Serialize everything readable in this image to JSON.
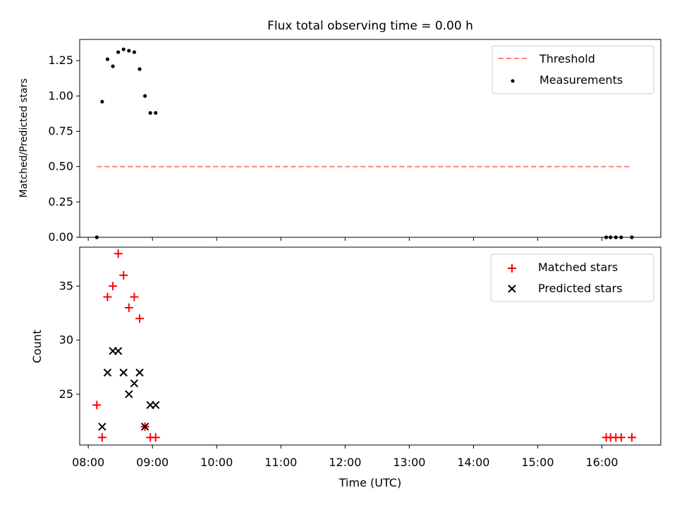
{
  "chart_data": [
    {
      "type": "scatter",
      "title": "Flux total observing time = 0.00 h",
      "xlabel": "",
      "ylabel": "Matched/Predicted stars",
      "xlim": [
        "07:52",
        "16:55"
      ],
      "ylim": [
        0,
        1.4
      ],
      "yticks": [
        0.0,
        0.25,
        0.5,
        0.75,
        1.0,
        1.25
      ],
      "ytick_labels": [
        "0.00",
        "0.25",
        "0.50",
        "0.75",
        "1.00",
        "1.25"
      ],
      "legend_position": "top-right",
      "grid": false,
      "series": [
        {
          "name": "Threshold",
          "kind": "line",
          "style": "dashed",
          "color": "#ff7f7f",
          "points": [
            [
              "08:08",
              0.5
            ],
            [
              "16:28",
              0.5
            ]
          ]
        },
        {
          "name": "Measurements",
          "kind": "scatter",
          "marker": "dot",
          "color": "#000000",
          "points": [
            [
              "08:08",
              0.0
            ],
            [
              "08:13",
              0.96
            ],
            [
              "08:18",
              1.26
            ],
            [
              "08:23",
              1.21
            ],
            [
              "08:28",
              1.31
            ],
            [
              "08:33",
              1.33
            ],
            [
              "08:38",
              1.32
            ],
            [
              "08:43",
              1.31
            ],
            [
              "08:48",
              1.19
            ],
            [
              "08:53",
              1.0
            ],
            [
              "08:58",
              0.88
            ],
            [
              "09:03",
              0.88
            ],
            [
              "16:04",
              0.0
            ],
            [
              "16:08",
              0.0
            ],
            [
              "16:13",
              0.0
            ],
            [
              "16:18",
              0.0
            ],
            [
              "16:28",
              0.0
            ]
          ]
        }
      ]
    },
    {
      "type": "scatter",
      "title": "",
      "xlabel": "Time (UTC)",
      "ylabel": "Count",
      "xlim": [
        "07:52",
        "16:55"
      ],
      "ylim": [
        20.3,
        38.6
      ],
      "yticks": [
        25,
        30,
        35
      ],
      "ytick_labels": [
        "25",
        "30",
        "35"
      ],
      "xticks": [
        "08:00",
        "09:00",
        "10:00",
        "11:00",
        "12:00",
        "13:00",
        "14:00",
        "15:00",
        "16:00"
      ],
      "xtick_labels": [
        "08:00",
        "09:00",
        "10:00",
        "11:00",
        "12:00",
        "13:00",
        "14:00",
        "15:00",
        "16:00"
      ],
      "legend_position": "top-right",
      "grid": false,
      "series": [
        {
          "name": "Matched stars",
          "kind": "scatter",
          "marker": "plus",
          "color": "#ff0000",
          "points": [
            [
              "08:08",
              24
            ],
            [
              "08:13",
              21
            ],
            [
              "08:18",
              34
            ],
            [
              "08:23",
              35
            ],
            [
              "08:28",
              38
            ],
            [
              "08:33",
              36
            ],
            [
              "08:38",
              33
            ],
            [
              "08:43",
              34
            ],
            [
              "08:48",
              32
            ],
            [
              "08:53",
              22
            ],
            [
              "08:58",
              21
            ],
            [
              "09:03",
              21
            ],
            [
              "16:04",
              21
            ],
            [
              "16:08",
              21
            ],
            [
              "16:13",
              21
            ],
            [
              "16:18",
              21
            ],
            [
              "16:28",
              21
            ]
          ]
        },
        {
          "name": "Predicted stars",
          "kind": "scatter",
          "marker": "x",
          "color": "#000000",
          "points": [
            [
              "08:13",
              22
            ],
            [
              "08:18",
              27
            ],
            [
              "08:23",
              29
            ],
            [
              "08:28",
              29
            ],
            [
              "08:33",
              27
            ],
            [
              "08:38",
              25
            ],
            [
              "08:43",
              26
            ],
            [
              "08:48",
              27
            ],
            [
              "08:53",
              22
            ],
            [
              "08:58",
              24
            ],
            [
              "09:03",
              24
            ]
          ]
        }
      ]
    }
  ]
}
